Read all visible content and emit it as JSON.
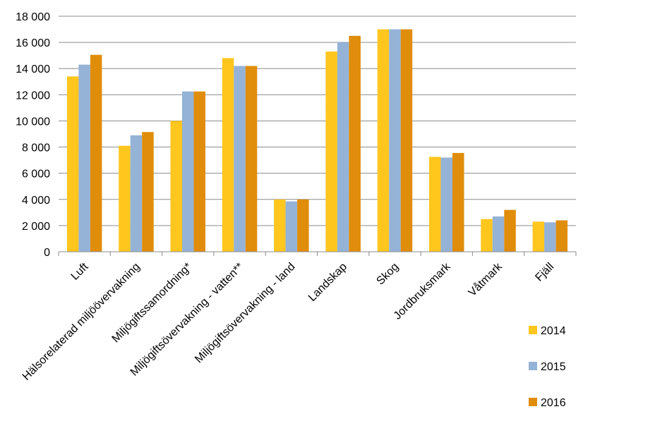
{
  "chart_data": {
    "type": "bar",
    "title": "",
    "xlabel": "",
    "ylabel": "",
    "ylim": [
      0,
      18000
    ],
    "yticks": [
      0,
      2000,
      4000,
      6000,
      8000,
      10000,
      12000,
      14000,
      16000,
      18000
    ],
    "ytick_labels": [
      "0",
      "2 000",
      "4 000",
      "6 000",
      "8 000",
      "10 000",
      "12 000",
      "14 000",
      "16 000",
      "18 000"
    ],
    "grid": true,
    "legend_position": "bottom-right",
    "categories": [
      "Luft",
      "Hälsorelaterad miljöövervakning",
      "Miljögiftssamordning*",
      "Miljögiftsövervakning - vatten**",
      "Miljögiftsövervakning - land",
      "Landskap",
      "Skog",
      "Jordbruksmark",
      "Våtmark",
      "Fjäll"
    ],
    "series": [
      {
        "name": "2014",
        "color": "#FFC61E",
        "values": [
          13400,
          8100,
          10000,
          14800,
          4000,
          15300,
          17000,
          7250,
          2500,
          2300
        ]
      },
      {
        "name": "2015",
        "color": "#95B3D7",
        "values": [
          14300,
          8900,
          12250,
          14200,
          3850,
          16000,
          17000,
          7200,
          2700,
          2250
        ]
      },
      {
        "name": "2016",
        "color": "#E08D0B",
        "values": [
          15050,
          9150,
          12250,
          14200,
          4000,
          16500,
          17000,
          7550,
          3200,
          2400
        ]
      }
    ]
  }
}
